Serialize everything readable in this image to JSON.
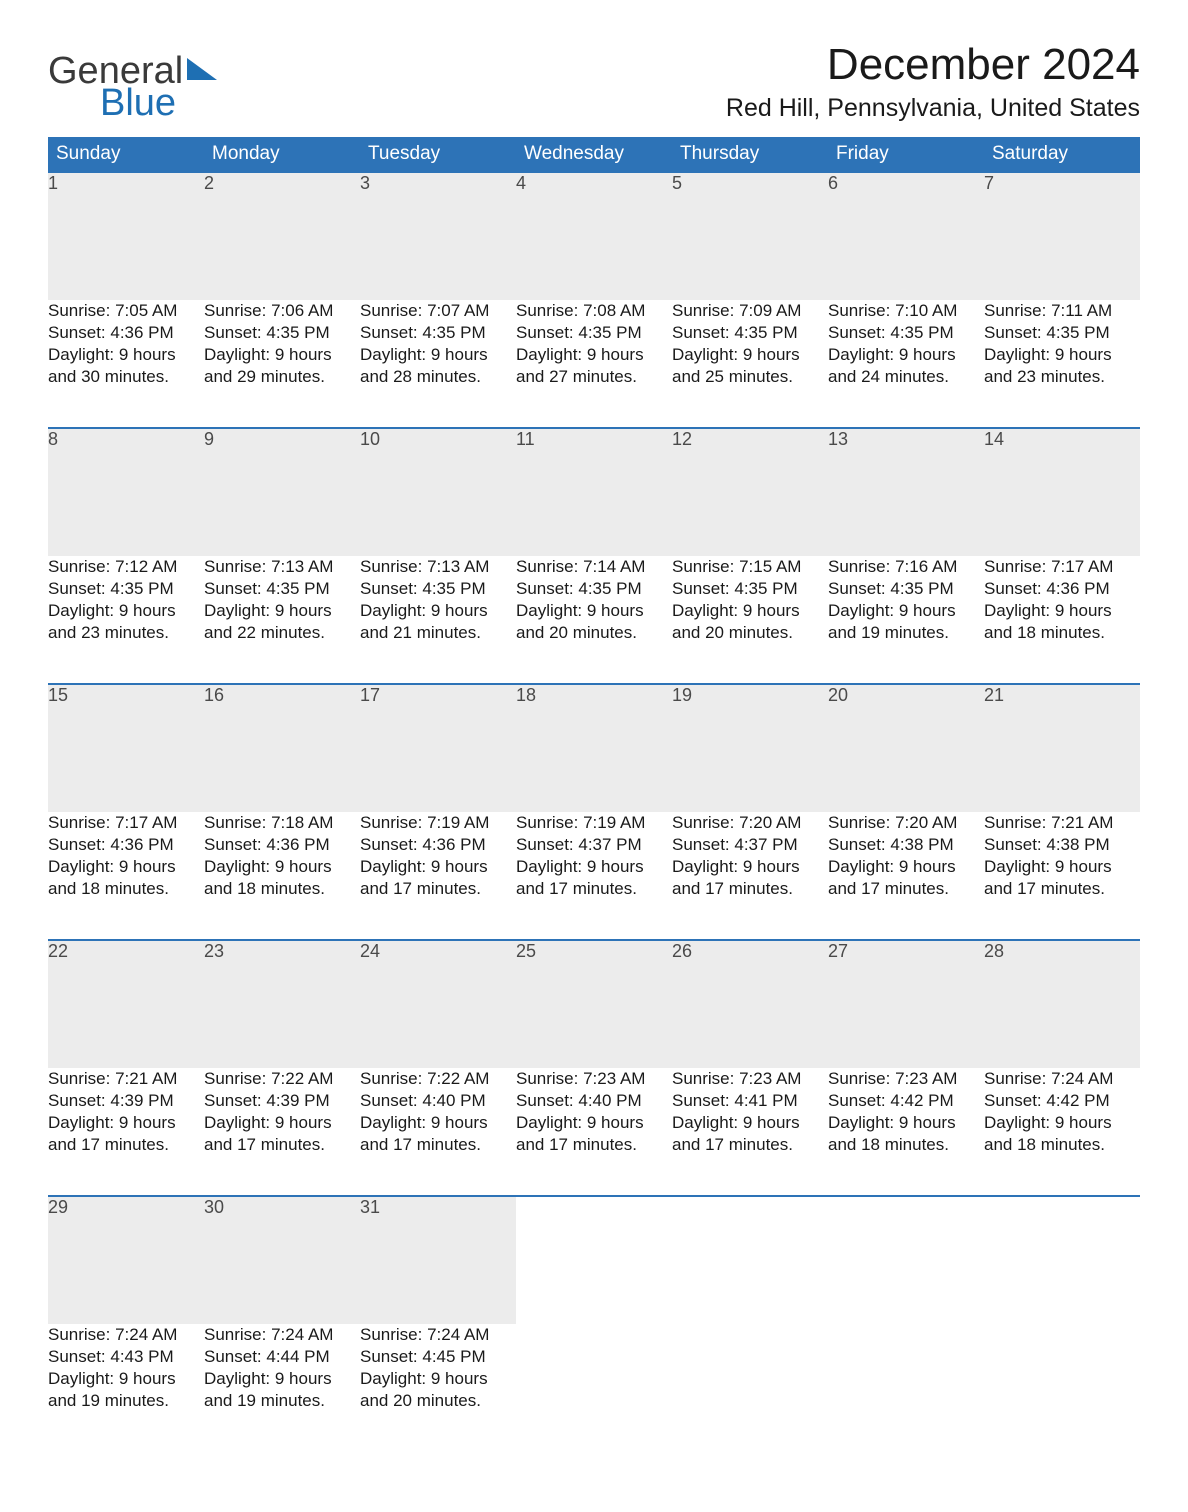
{
  "brand": {
    "word1": "General",
    "word2": "Blue"
  },
  "title": "December 2024",
  "location": "Red Hill, Pennsylvania, United States",
  "colors": {
    "header_bg": "#2d73b7",
    "header_text": "#ffffff",
    "daynum_bg": "#ececec",
    "row_border": "#2d73b7",
    "page_bg": "#ffffff",
    "text": "#1a1a1a",
    "logo_gray": "#3a3a3a",
    "logo_blue": "#1e6fb3"
  },
  "typography": {
    "title_fontsize": 44,
    "location_fontsize": 25,
    "header_fontsize": 19,
    "daynum_fontsize": 18,
    "body_fontsize": 17,
    "font_family": "Arial"
  },
  "layout": {
    "columns": 7,
    "weeks": 5,
    "leading_blanks": 0,
    "trailing_blanks": 4
  },
  "weekdays": [
    "Sunday",
    "Monday",
    "Tuesday",
    "Wednesday",
    "Thursday",
    "Friday",
    "Saturday"
  ],
  "days": [
    {
      "n": "1",
      "sunrise": "Sunrise: 7:05 AM",
      "sunset": "Sunset: 4:36 PM",
      "daylight": "Daylight: 9 hours and 30 minutes."
    },
    {
      "n": "2",
      "sunrise": "Sunrise: 7:06 AM",
      "sunset": "Sunset: 4:35 PM",
      "daylight": "Daylight: 9 hours and 29 minutes."
    },
    {
      "n": "3",
      "sunrise": "Sunrise: 7:07 AM",
      "sunset": "Sunset: 4:35 PM",
      "daylight": "Daylight: 9 hours and 28 minutes."
    },
    {
      "n": "4",
      "sunrise": "Sunrise: 7:08 AM",
      "sunset": "Sunset: 4:35 PM",
      "daylight": "Daylight: 9 hours and 27 minutes."
    },
    {
      "n": "5",
      "sunrise": "Sunrise: 7:09 AM",
      "sunset": "Sunset: 4:35 PM",
      "daylight": "Daylight: 9 hours and 25 minutes."
    },
    {
      "n": "6",
      "sunrise": "Sunrise: 7:10 AM",
      "sunset": "Sunset: 4:35 PM",
      "daylight": "Daylight: 9 hours and 24 minutes."
    },
    {
      "n": "7",
      "sunrise": "Sunrise: 7:11 AM",
      "sunset": "Sunset: 4:35 PM",
      "daylight": "Daylight: 9 hours and 23 minutes."
    },
    {
      "n": "8",
      "sunrise": "Sunrise: 7:12 AM",
      "sunset": "Sunset: 4:35 PM",
      "daylight": "Daylight: 9 hours and 23 minutes."
    },
    {
      "n": "9",
      "sunrise": "Sunrise: 7:13 AM",
      "sunset": "Sunset: 4:35 PM",
      "daylight": "Daylight: 9 hours and 22 minutes."
    },
    {
      "n": "10",
      "sunrise": "Sunrise: 7:13 AM",
      "sunset": "Sunset: 4:35 PM",
      "daylight": "Daylight: 9 hours and 21 minutes."
    },
    {
      "n": "11",
      "sunrise": "Sunrise: 7:14 AM",
      "sunset": "Sunset: 4:35 PM",
      "daylight": "Daylight: 9 hours and 20 minutes."
    },
    {
      "n": "12",
      "sunrise": "Sunrise: 7:15 AM",
      "sunset": "Sunset: 4:35 PM",
      "daylight": "Daylight: 9 hours and 20 minutes."
    },
    {
      "n": "13",
      "sunrise": "Sunrise: 7:16 AM",
      "sunset": "Sunset: 4:35 PM",
      "daylight": "Daylight: 9 hours and 19 minutes."
    },
    {
      "n": "14",
      "sunrise": "Sunrise: 7:17 AM",
      "sunset": "Sunset: 4:36 PM",
      "daylight": "Daylight: 9 hours and 18 minutes."
    },
    {
      "n": "15",
      "sunrise": "Sunrise: 7:17 AM",
      "sunset": "Sunset: 4:36 PM",
      "daylight": "Daylight: 9 hours and 18 minutes."
    },
    {
      "n": "16",
      "sunrise": "Sunrise: 7:18 AM",
      "sunset": "Sunset: 4:36 PM",
      "daylight": "Daylight: 9 hours and 18 minutes."
    },
    {
      "n": "17",
      "sunrise": "Sunrise: 7:19 AM",
      "sunset": "Sunset: 4:36 PM",
      "daylight": "Daylight: 9 hours and 17 minutes."
    },
    {
      "n": "18",
      "sunrise": "Sunrise: 7:19 AM",
      "sunset": "Sunset: 4:37 PM",
      "daylight": "Daylight: 9 hours and 17 minutes."
    },
    {
      "n": "19",
      "sunrise": "Sunrise: 7:20 AM",
      "sunset": "Sunset: 4:37 PM",
      "daylight": "Daylight: 9 hours and 17 minutes."
    },
    {
      "n": "20",
      "sunrise": "Sunrise: 7:20 AM",
      "sunset": "Sunset: 4:38 PM",
      "daylight": "Daylight: 9 hours and 17 minutes."
    },
    {
      "n": "21",
      "sunrise": "Sunrise: 7:21 AM",
      "sunset": "Sunset: 4:38 PM",
      "daylight": "Daylight: 9 hours and 17 minutes."
    },
    {
      "n": "22",
      "sunrise": "Sunrise: 7:21 AM",
      "sunset": "Sunset: 4:39 PM",
      "daylight": "Daylight: 9 hours and 17 minutes."
    },
    {
      "n": "23",
      "sunrise": "Sunrise: 7:22 AM",
      "sunset": "Sunset: 4:39 PM",
      "daylight": "Daylight: 9 hours and 17 minutes."
    },
    {
      "n": "24",
      "sunrise": "Sunrise: 7:22 AM",
      "sunset": "Sunset: 4:40 PM",
      "daylight": "Daylight: 9 hours and 17 minutes."
    },
    {
      "n": "25",
      "sunrise": "Sunrise: 7:23 AM",
      "sunset": "Sunset: 4:40 PM",
      "daylight": "Daylight: 9 hours and 17 minutes."
    },
    {
      "n": "26",
      "sunrise": "Sunrise: 7:23 AM",
      "sunset": "Sunset: 4:41 PM",
      "daylight": "Daylight: 9 hours and 17 minutes."
    },
    {
      "n": "27",
      "sunrise": "Sunrise: 7:23 AM",
      "sunset": "Sunset: 4:42 PM",
      "daylight": "Daylight: 9 hours and 18 minutes."
    },
    {
      "n": "28",
      "sunrise": "Sunrise: 7:24 AM",
      "sunset": "Sunset: 4:42 PM",
      "daylight": "Daylight: 9 hours and 18 minutes."
    },
    {
      "n": "29",
      "sunrise": "Sunrise: 7:24 AM",
      "sunset": "Sunset: 4:43 PM",
      "daylight": "Daylight: 9 hours and 19 minutes."
    },
    {
      "n": "30",
      "sunrise": "Sunrise: 7:24 AM",
      "sunset": "Sunset: 4:44 PM",
      "daylight": "Daylight: 9 hours and 19 minutes."
    },
    {
      "n": "31",
      "sunrise": "Sunrise: 7:24 AM",
      "sunset": "Sunset: 4:45 PM",
      "daylight": "Daylight: 9 hours and 20 minutes."
    }
  ]
}
